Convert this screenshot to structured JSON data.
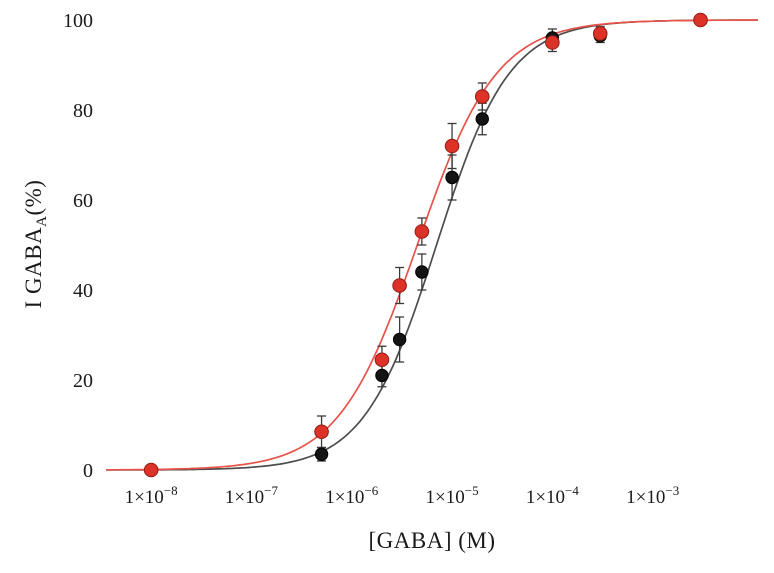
{
  "figure": {
    "background": "#ffffff",
    "text_color": "#1a1a1a"
  },
  "chart_data": {
    "type": "scatter",
    "title": "",
    "xlabel": "[GABA] (M)",
    "ylabel": {
      "pre": "I GABA",
      "sub": "A",
      "post": "(%)"
    },
    "x_scale": "log",
    "xlim_log10": [
      -8.45,
      -1.95
    ],
    "ylim": [
      0,
      100
    ],
    "grid": false,
    "legend": "none",
    "frame": "none",
    "x_ticks": [
      {
        "base": "1×10",
        "exp": "−8",
        "value": 1e-08
      },
      {
        "base": "1×10",
        "exp": "−7",
        "value": 1e-07
      },
      {
        "base": "1×10",
        "exp": "−6",
        "value": 1e-06
      },
      {
        "base": "1×10",
        "exp": "−5",
        "value": 1e-05
      },
      {
        "base": "1×10",
        "exp": "−4",
        "value": 0.0001
      },
      {
        "base": "1×10",
        "exp": "−3",
        "value": 0.001
      }
    ],
    "y_ticks": [
      0,
      20,
      40,
      60,
      80,
      100
    ],
    "series": [
      {
        "id": "black",
        "name": "black-circles",
        "marker_color": "#141414",
        "marker_edge": "#000000",
        "marker_radius": 6.2,
        "line_color": "#4d4d4d",
        "error_color": "#3a3a3a",
        "fit": {
          "model": "hill",
          "ec50": 7e-06,
          "hill_slope": 1.2,
          "max": 100
        },
        "points": [
          {
            "x": 1e-08,
            "y": 0,
            "err": 0.5
          },
          {
            "x": 5e-07,
            "y": 3.5,
            "err": 1.5
          },
          {
            "x": 2e-06,
            "y": 21,
            "err": 2.5
          },
          {
            "x": 3e-06,
            "y": 29,
            "err": 5
          },
          {
            "x": 5e-06,
            "y": 44,
            "err": 4
          },
          {
            "x": 1e-05,
            "y": 65,
            "err": 5
          },
          {
            "x": 2e-05,
            "y": 78,
            "err": 3.5
          },
          {
            "x": 0.0001,
            "y": 96,
            "err": 2
          },
          {
            "x": 0.0003,
            "y": 96.5,
            "err": 1.5
          },
          {
            "x": 0.003,
            "y": 100,
            "err": 0.5
          }
        ]
      },
      {
        "id": "red",
        "name": "red-circles",
        "marker_color": "#dd3227",
        "marker_edge": "#8f1d15",
        "marker_radius": 6.8,
        "line_color": "#e8534a",
        "error_color": "#3a3a3a",
        "fit": {
          "model": "hill",
          "ec50": 4.5e-06,
          "hill_slope": 1.1,
          "max": 100
        },
        "points": [
          {
            "x": 1e-08,
            "y": 0,
            "err": 0.5
          },
          {
            "x": 5e-07,
            "y": 8.5,
            "err": 3.5
          },
          {
            "x": 2e-06,
            "y": 24.5,
            "err": 3
          },
          {
            "x": 3e-06,
            "y": 41,
            "err": 4
          },
          {
            "x": 5e-06,
            "y": 53,
            "err": 3
          },
          {
            "x": 1e-05,
            "y": 72,
            "err": 5
          },
          {
            "x": 2e-05,
            "y": 83,
            "err": 3
          },
          {
            "x": 0.0001,
            "y": 95,
            "err": 2
          },
          {
            "x": 0.0003,
            "y": 97,
            "err": 1.5
          },
          {
            "x": 0.003,
            "y": 100,
            "err": 0.5
          }
        ]
      }
    ]
  }
}
